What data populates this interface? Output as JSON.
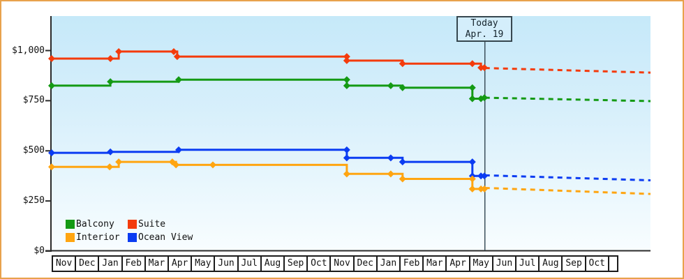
{
  "window": {
    "border_color": "#e8a24c",
    "background": "#ffffff"
  },
  "today_box": {
    "line1": "Today",
    "line2": "Apr. 19"
  },
  "legend": {
    "items": [
      {
        "label": "Balcony",
        "color": "#149a14"
      },
      {
        "label": "Suite",
        "color": "#f43b0c"
      },
      {
        "label": "Interior",
        "color": "#ffa511"
      },
      {
        "label": "Ocean View",
        "color": "#0b3cf2"
      }
    ]
  },
  "chart_data": {
    "type": "line",
    "title": "",
    "xlabel": "",
    "ylabel": "",
    "grid": false,
    "legend_position": "bottom-left-inside",
    "x_axis": {
      "unit": "month",
      "categories": [
        "Nov",
        "Dec",
        "Jan",
        "Feb",
        "Mar",
        "Apr",
        "May",
        "Jun",
        "Jul",
        "Aug",
        "Sep",
        "Oct",
        "Nov",
        "Dec",
        "Jan",
        "Feb",
        "Mar",
        "Apr",
        "May",
        "Jun",
        "Jul",
        "Aug",
        "Sep",
        "Oct"
      ]
    },
    "y_axis": {
      "range": [
        0,
        1000
      ],
      "ticks": [
        {
          "label": "$0",
          "value": 0
        },
        {
          "label": "$250",
          "value": 250
        },
        {
          "label": "$500",
          "value": 500
        },
        {
          "label": "$750",
          "value": 750
        },
        {
          "label": "$1,000",
          "value": 1000
        }
      ]
    },
    "today": {
      "x": 17.63,
      "label": "Today Apr. 19"
    },
    "series": [
      {
        "name": "Suite",
        "color": "#f43b0c",
        "path": [
          [
            0,
            960
          ],
          [
            2.73,
            960
          ],
          [
            2.73,
            995
          ],
          [
            5.11,
            995
          ],
          [
            5.11,
            970
          ],
          [
            12.01,
            970
          ],
          [
            12.01,
            950
          ],
          [
            14.28,
            950
          ],
          [
            14.28,
            935
          ],
          [
            17.47,
            935
          ],
          [
            17.47,
            915
          ],
          [
            17.63,
            915
          ]
        ],
        "markers": [
          [
            0,
            960
          ],
          [
            2.39,
            960
          ],
          [
            2.73,
            995
          ],
          [
            4.97,
            995
          ],
          [
            5.11,
            970
          ],
          [
            12.01,
            970
          ],
          [
            12.01,
            950
          ],
          [
            14.28,
            935
          ],
          [
            17.12,
            935
          ],
          [
            17.47,
            915
          ],
          [
            17.61,
            915
          ]
        ],
        "forecast": [
          [
            17.63,
            913
          ],
          [
            24.37,
            890
          ]
        ]
      },
      {
        "name": "Balcony",
        "color": "#149a14",
        "path": [
          [
            0,
            825
          ],
          [
            2.39,
            825
          ],
          [
            2.39,
            845
          ],
          [
            5.17,
            845
          ],
          [
            5.17,
            855
          ],
          [
            12.01,
            855
          ],
          [
            12.01,
            825
          ],
          [
            14.28,
            825
          ],
          [
            14.28,
            815
          ],
          [
            17.12,
            815
          ],
          [
            17.12,
            760
          ],
          [
            17.47,
            760
          ],
          [
            17.47,
            765
          ],
          [
            17.63,
            765
          ]
        ],
        "markers": [
          [
            0,
            825
          ],
          [
            2.39,
            845
          ],
          [
            5.17,
            855
          ],
          [
            12.01,
            855
          ],
          [
            12.01,
            825
          ],
          [
            13.8,
            825
          ],
          [
            14.28,
            815
          ],
          [
            17.12,
            815
          ],
          [
            17.12,
            760
          ],
          [
            17.47,
            760
          ],
          [
            17.61,
            765
          ]
        ],
        "forecast": [
          [
            17.63,
            765
          ],
          [
            24.37,
            748
          ]
        ]
      },
      {
        "name": "Ocean View",
        "color": "#0b3cf2",
        "path": [
          [
            0,
            490
          ],
          [
            2.39,
            490
          ],
          [
            2.39,
            495
          ],
          [
            5.17,
            495
          ],
          [
            5.17,
            505
          ],
          [
            12.01,
            505
          ],
          [
            12.01,
            465
          ],
          [
            14.28,
            465
          ],
          [
            14.28,
            445
          ],
          [
            17.12,
            445
          ],
          [
            17.12,
            375
          ],
          [
            17.63,
            375
          ]
        ],
        "markers": [
          [
            0,
            490
          ],
          [
            2.39,
            495
          ],
          [
            5.17,
            505
          ],
          [
            12.01,
            505
          ],
          [
            12.01,
            465
          ],
          [
            13.8,
            465
          ],
          [
            14.28,
            445
          ],
          [
            17.12,
            445
          ],
          [
            17.12,
            375
          ],
          [
            17.47,
            375
          ],
          [
            17.61,
            375
          ]
        ],
        "forecast": [
          [
            17.63,
            378
          ],
          [
            24.37,
            353
          ]
        ]
      },
      {
        "name": "Interior",
        "color": "#ffa511",
        "path": [
          [
            0,
            420
          ],
          [
            2.73,
            420
          ],
          [
            2.73,
            445
          ],
          [
            5.06,
            445
          ],
          [
            5.06,
            430
          ],
          [
            12.01,
            430
          ],
          [
            12.01,
            385
          ],
          [
            14.28,
            385
          ],
          [
            14.28,
            360
          ],
          [
            17.12,
            360
          ],
          [
            17.12,
            310
          ],
          [
            17.63,
            310
          ]
        ],
        "markers": [
          [
            0,
            420
          ],
          [
            2.36,
            420
          ],
          [
            2.73,
            445
          ],
          [
            4.91,
            445
          ],
          [
            5.06,
            430
          ],
          [
            6.56,
            430
          ],
          [
            12.01,
            385
          ],
          [
            13.8,
            385
          ],
          [
            14.28,
            360
          ],
          [
            17.12,
            360
          ],
          [
            17.12,
            310
          ],
          [
            17.47,
            310
          ],
          [
            17.61,
            310
          ]
        ],
        "forecast": [
          [
            17.63,
            315
          ],
          [
            24.37,
            285
          ]
        ]
      }
    ]
  }
}
